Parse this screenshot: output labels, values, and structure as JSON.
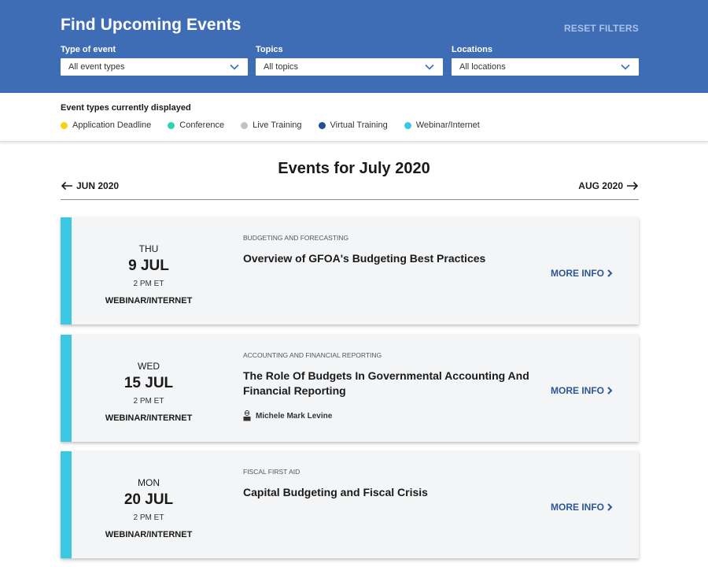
{
  "header": {
    "title": "Find Upcoming Events",
    "reset_label": "RESET FILTERS",
    "filters": [
      {
        "label": "Type of event",
        "value": "All event types"
      },
      {
        "label": "Topics",
        "value": "All topics"
      },
      {
        "label": "Locations",
        "value": "All locations"
      }
    ]
  },
  "legend": {
    "title": "Event types currently displayed",
    "items": [
      {
        "label": "Application Deadline",
        "color": "#f5d312"
      },
      {
        "label": "Conference",
        "color": "#2fd3b0"
      },
      {
        "label": "Live Training",
        "color": "#c2c2c2"
      },
      {
        "label": "Virtual Training",
        "color": "#1f4f99"
      },
      {
        "label": "Webinar/Internet",
        "color": "#3cc8e2"
      }
    ]
  },
  "month": {
    "heading": "Events for July 2020",
    "prev_label": "JUN 2020",
    "next_label": "AUG 2020"
  },
  "events": [
    {
      "dow": "THU",
      "day": "9 JUL",
      "time": "2 PM ET",
      "type": "WEBINAR/INTERNET",
      "category": "BUDGETING AND FORECASTING",
      "title": "Overview of GFOA's Budgeting Best Practices",
      "presenter": "",
      "more_label": "MORE INFO",
      "accent": "#3cc8e2"
    },
    {
      "dow": "WED",
      "day": "15 JUL",
      "time": "2 PM ET",
      "type": "WEBINAR/INTERNET",
      "category": "ACCOUNTING AND FINANCIAL REPORTING",
      "title": "The Role Of Budgets In Governmental Accounting And Financial Reporting",
      "presenter": "Michele Mark Levine",
      "more_label": "MORE INFO",
      "accent": "#3cc8e2"
    },
    {
      "dow": "MON",
      "day": "20 JUL",
      "time": "2 PM ET",
      "type": "WEBINAR/INTERNET",
      "category": "FISCAL FIRST AID",
      "title": "Capital Budgeting and Fiscal Crisis",
      "presenter": "",
      "more_label": "MORE INFO",
      "accent": "#3cc8e2"
    }
  ]
}
